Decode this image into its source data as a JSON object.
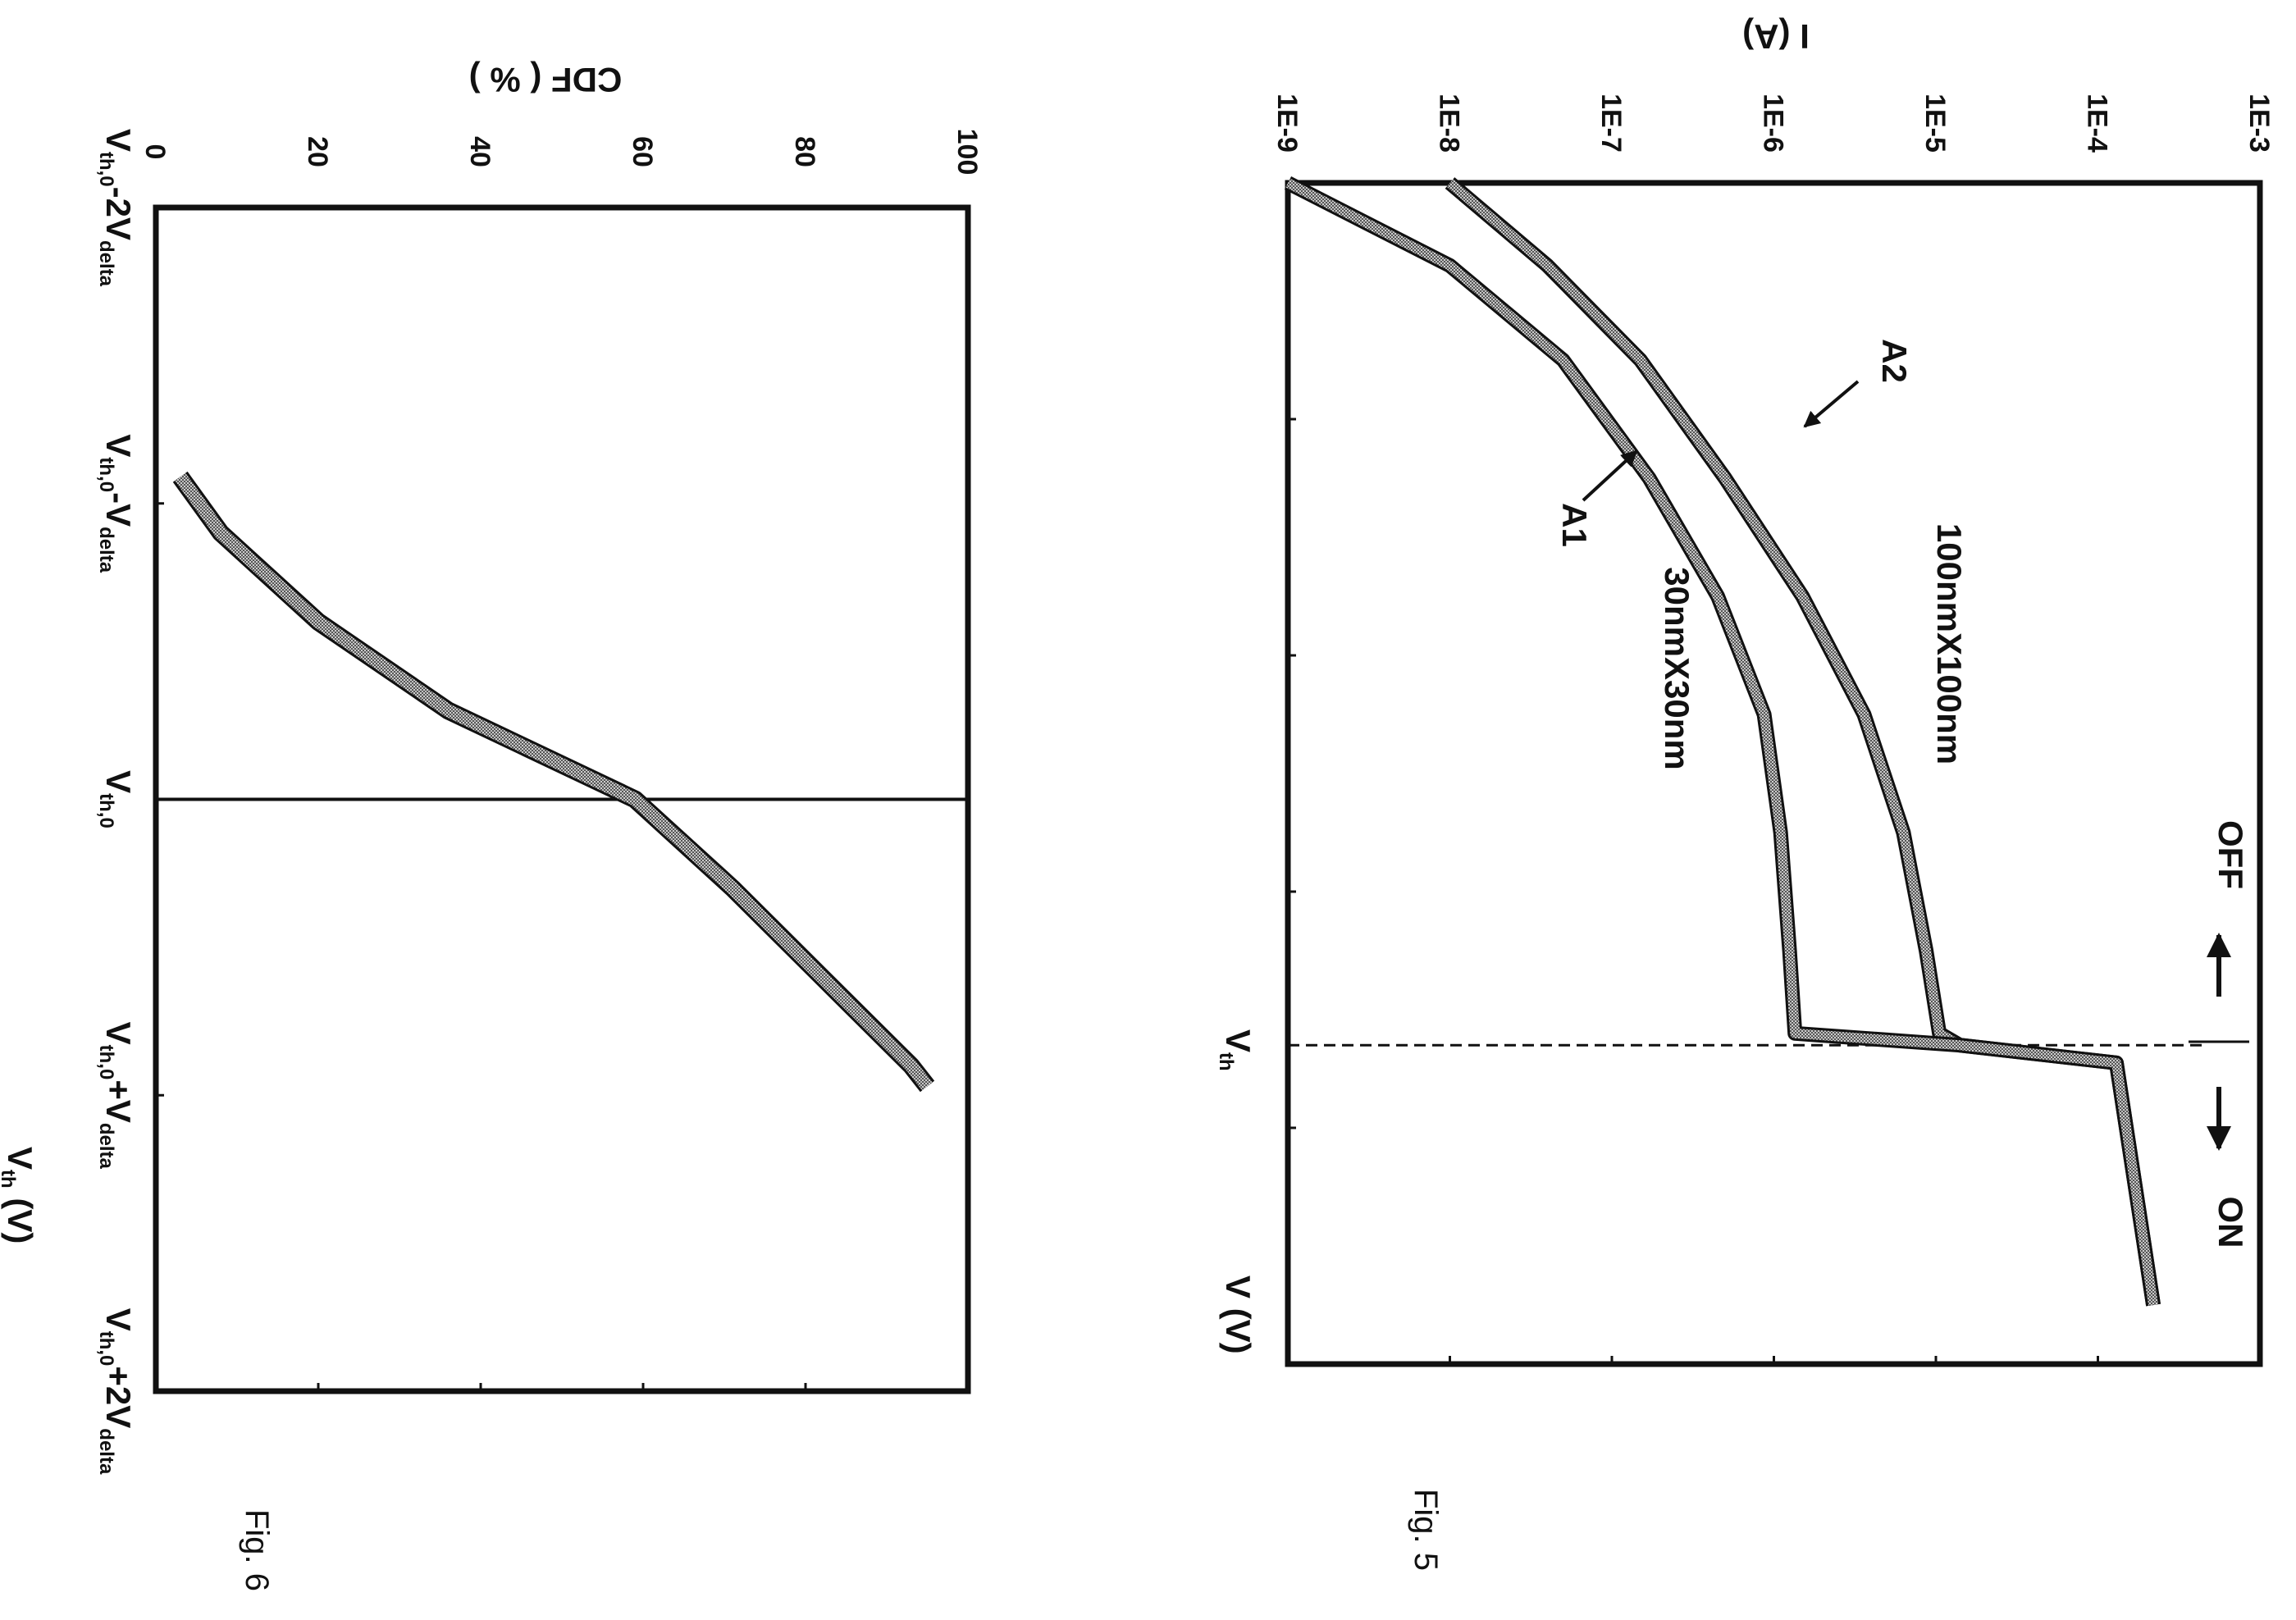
{
  "figures": [
    {
      "caption": "Fig. 5"
    },
    {
      "caption": "Fig. 6"
    }
  ],
  "chart_data": [
    {
      "figure": "Fig. 5",
      "type": "line",
      "title": "",
      "xlabel": {
        "main": "V",
        "unit": " (V)"
      },
      "ylabel": "I (A)",
      "x_scale": "relative, 0-10",
      "y_scale": "log",
      "xlim": [
        0,
        10
      ],
      "ylim": [
        1e-09,
        0.001
      ],
      "y_ticks": [
        "1E-9",
        "1E-8",
        "1E-7",
        "1E-6",
        "1E-5",
        "1E-4",
        "1E-3"
      ],
      "vth_marker": {
        "x": 7.3,
        "label_main": "V",
        "label_sub": "th",
        "style": "dashed"
      },
      "state_labels": {
        "off": "OFF",
        "on": "ON"
      },
      "series": [
        {
          "name": "100nmX100nm",
          "annotation": "A2",
          "x": [
            0,
            0.7,
            1.5,
            2.5,
            3.5,
            4.5,
            5.5,
            6.5,
            7.2,
            7.3,
            7.45,
            9.5
          ],
          "y": [
            1e-08,
            4e-08,
            1.5e-07,
            5e-07,
            1.5e-06,
            3.6e-06,
            6.3e-06,
            8.7e-06,
            1.05e-05,
            1.4e-05,
            0.00013,
            0.00022
          ]
        },
        {
          "name": "30nmX30nm",
          "annotation": "A1",
          "x": [
            0,
            0.7,
            1.5,
            2.5,
            3.5,
            4.5,
            5.5,
            6.5,
            7.2,
            7.3,
            7.45,
            9.5
          ],
          "y": [
            1e-09,
            1e-08,
            5e-08,
            1.7e-07,
            4.5e-07,
            8.7e-07,
            1.1e-06,
            1.25e-06,
            1.35e-06,
            1.4e-05,
            0.00013,
            0.00022
          ]
        }
      ]
    },
    {
      "figure": "Fig. 6",
      "type": "line",
      "title": "",
      "xlabel": {
        "main": "V",
        "sub": "th",
        "unit": " (V)"
      },
      "ylabel": "CDF ( % )",
      "ylim": [
        0,
        100
      ],
      "y_ticks": [
        "0",
        "20",
        "40",
        "60",
        "80",
        "100"
      ],
      "xlim": [
        -2,
        2
      ],
      "x_ticks": [
        {
          "main": "V",
          "sub": "th,0",
          "op": "-2V",
          "sub2": "delta"
        },
        {
          "main": "V",
          "sub": "th,0",
          "op": "-V",
          "sub2": "delta"
        },
        {
          "main": "V",
          "sub": "th,0",
          "op": "",
          "sub2": ""
        },
        {
          "main": "V",
          "sub": "th,0",
          "op": "+V",
          "sub2": "delta"
        },
        {
          "main": "V",
          "sub": "th,0",
          "op": "+2V",
          "sub2": "delta"
        }
      ],
      "reference_line_x": 0,
      "series": [
        {
          "x": [
            -1.09,
            -0.9,
            -0.6,
            -0.3,
            0,
            0.3,
            0.6,
            0.9,
            0.97
          ],
          "y": [
            3,
            8,
            20,
            36,
            59,
            71,
            82,
            93,
            95
          ]
        }
      ]
    }
  ]
}
